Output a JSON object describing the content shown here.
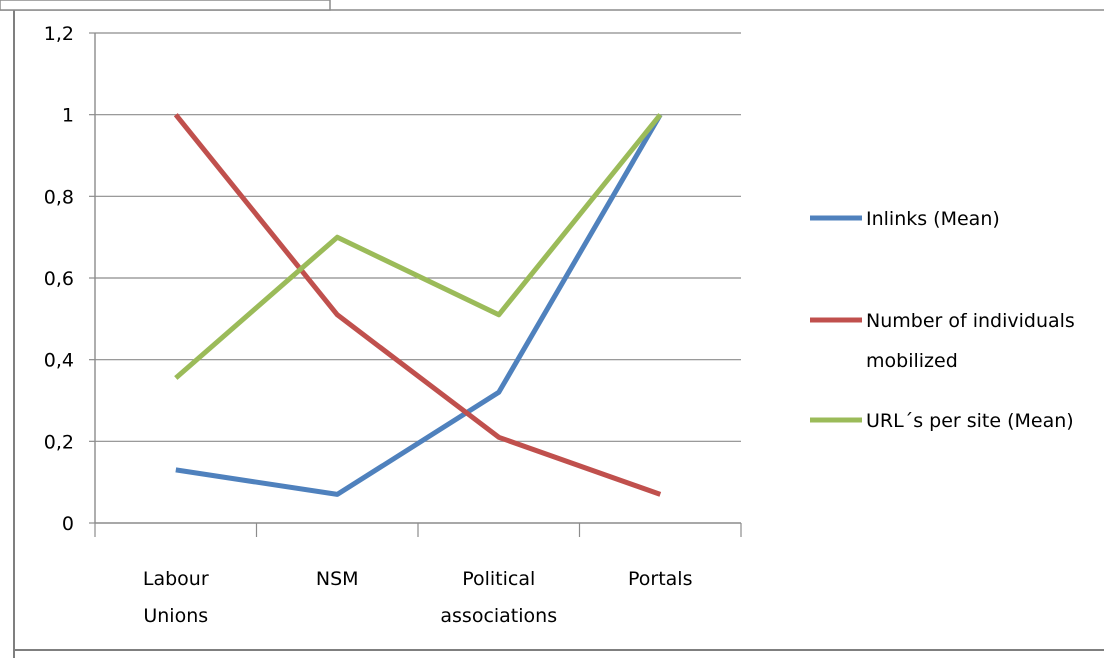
{
  "chart_data": {
    "type": "line",
    "categories": [
      [
        "Labour",
        "Unions"
      ],
      [
        "NSM"
      ],
      [
        "Political",
        "associations"
      ],
      [
        "Portals"
      ]
    ],
    "y_ticks": [
      "0",
      "0,2",
      "0,4",
      "0,6",
      "0,8",
      "1",
      "1,2"
    ],
    "ylim": [
      0,
      1.2
    ],
    "grid": true,
    "legend_position": "right",
    "series": [
      {
        "name": [
          "Inlinks (Mean)"
        ],
        "color": "#4f81bd",
        "values": [
          0.13,
          0.07,
          0.32,
          1.0
        ]
      },
      {
        "name": [
          "Number of individuals",
          "mobilized"
        ],
        "color": "#c0504d",
        "values": [
          1.0,
          0.51,
          0.21,
          0.07
        ]
      },
      {
        "name": [
          "URL´s per site (Mean)"
        ],
        "color": "#9bbb59",
        "values": [
          0.355,
          0.7,
          0.51,
          1.0
        ]
      }
    ]
  }
}
